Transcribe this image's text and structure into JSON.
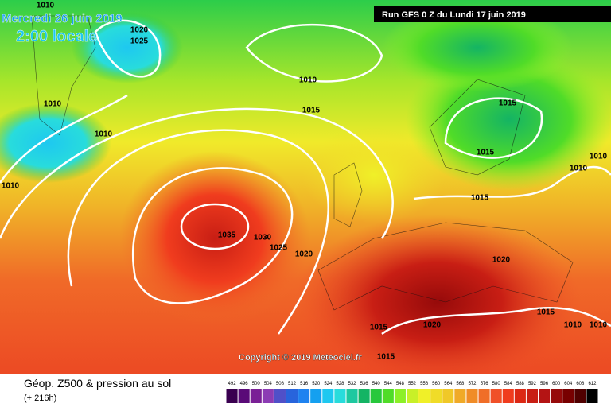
{
  "header": {
    "date": "Mercredi 26 juin 2019",
    "time": "2:00 locale",
    "run": "Run GFS 0 Z du Lundi 17 juin 2019"
  },
  "map": {
    "isobar_labels": [
      "1010",
      "1020",
      "1025",
      "1010",
      "1015",
      "1010",
      "1010",
      "1010",
      "1015",
      "1015",
      "1010",
      "1010",
      "1015",
      "1035",
      "1030",
      "1025",
      "1020",
      "1020",
      "1015",
      "1010",
      "1010",
      "1015",
      "1020",
      "1015"
    ],
    "copyright": "Copyright © 2019 Meteociel.fr"
  },
  "footer": {
    "title": "Géop. Z500 & pression au sol",
    "lead": "(+ 216h)"
  },
  "scale": {
    "labels": [
      492,
      496,
      500,
      504,
      508,
      512,
      516,
      520,
      524,
      528,
      532,
      536,
      540,
      544,
      548,
      552,
      556,
      560,
      564,
      568,
      572,
      576,
      580,
      584,
      588,
      592,
      596,
      600,
      604,
      608,
      612
    ],
    "colors": [
      "#3a0050",
      "#5a0a78",
      "#7a2096",
      "#8c3cb4",
      "#5050c8",
      "#2864dc",
      "#1e82f0",
      "#14a0f0",
      "#1ec8f0",
      "#28dcdc",
      "#1ec8a0",
      "#14b464",
      "#28c83c",
      "#50dc28",
      "#8cf028",
      "#c8f028",
      "#f0f028",
      "#f0dc28",
      "#f0c828",
      "#f0aa28",
      "#f08c28",
      "#f06e28",
      "#f05028",
      "#f03c1e",
      "#dc2814",
      "#c81e14",
      "#b41414",
      "#960a0a",
      "#780000",
      "#500000",
      "#000000"
    ]
  }
}
